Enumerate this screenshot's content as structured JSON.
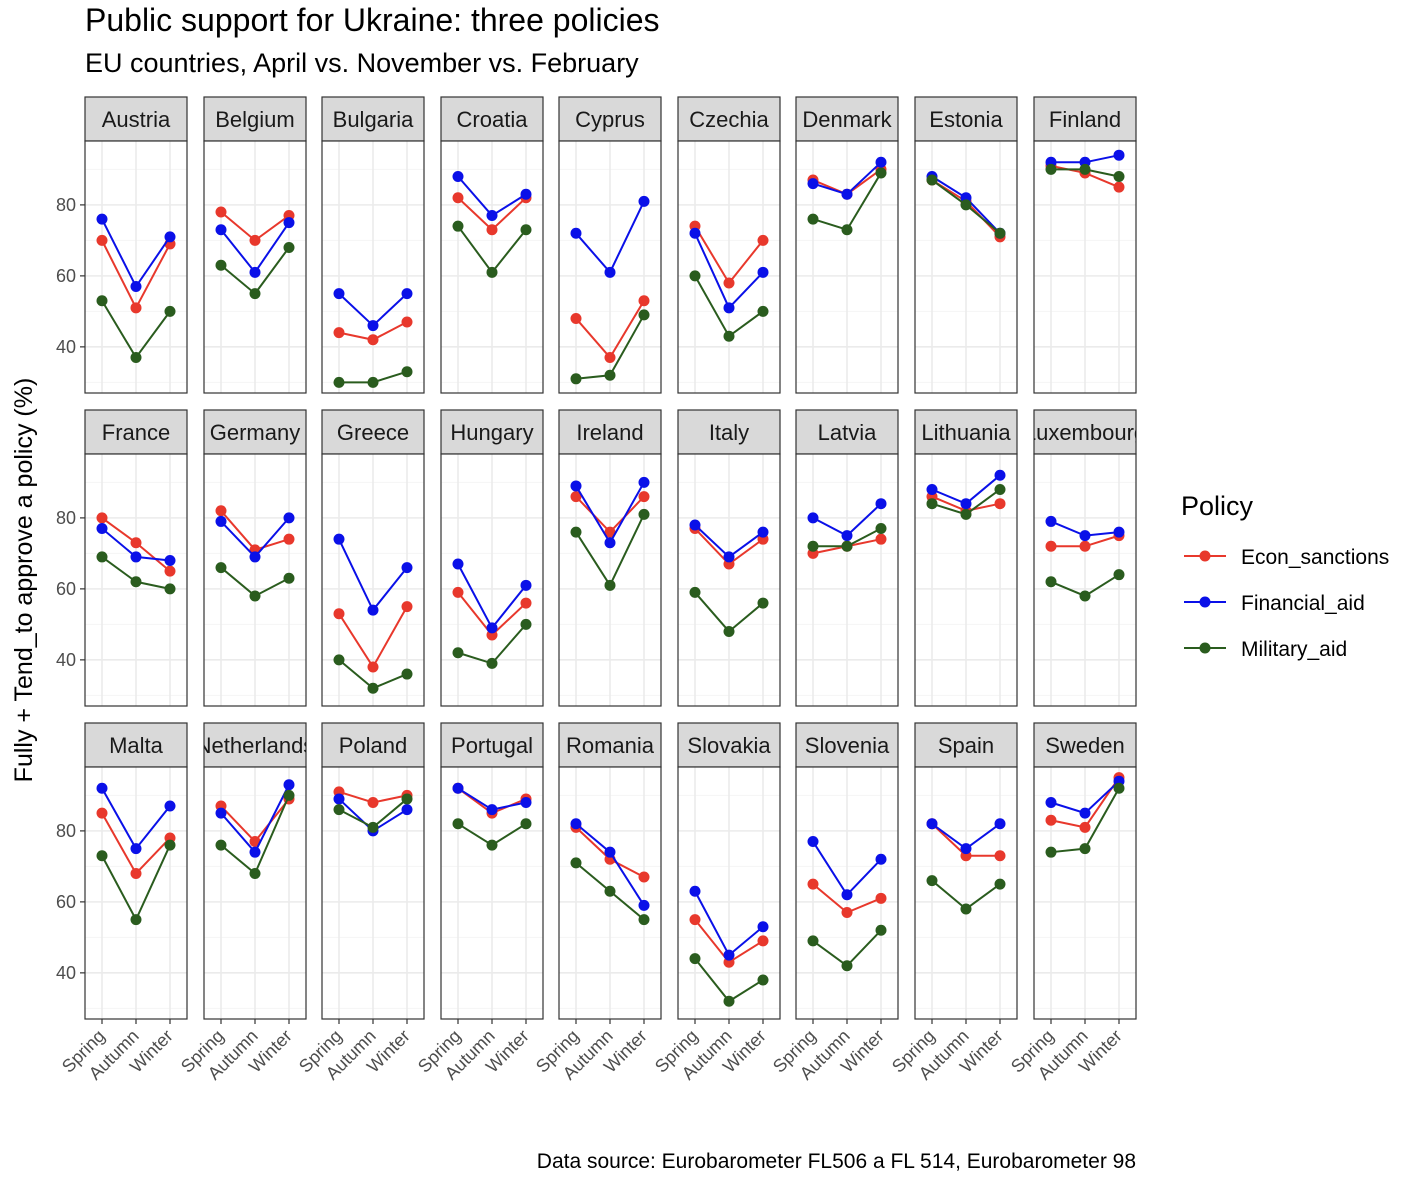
{
  "title": "Public support for Ukraine: three policies",
  "subtitle": "EU countries, April vs. November vs. February",
  "caption": "Data source: Eurobarometer FL506 a FL 514, Eurobarometer 98",
  "colors": {
    "Econ_sanctions": "#e8382c",
    "Financial_aid": "#0a10e8",
    "Military_aid": "#2a5c1e",
    "strip_bg": "#d9d9d9",
    "grid_major": "#ebebeb",
    "grid_minor": "#f5f5f5",
    "panel_border": "#333333"
  },
  "chart_data": {
    "type": "line",
    "facet": "country",
    "ylabel": "Fully + Tend_to approve a policy (%)",
    "xlabel": "",
    "x": [
      "Spring",
      "Autumn",
      "Winter"
    ],
    "ylim": [
      27,
      98
    ],
    "yticks": [
      40,
      60,
      80
    ],
    "grid": true,
    "legend": {
      "title": "Policy",
      "position": "right",
      "entries": [
        "Econ_sanctions",
        "Financial_aid",
        "Military_aid"
      ]
    },
    "panels": [
      {
        "country": "Austria",
        "Econ_sanctions": [
          70,
          51,
          69
        ],
        "Financial_aid": [
          76,
          57,
          71
        ],
        "Military_aid": [
          53,
          37,
          50
        ]
      },
      {
        "country": "Belgium",
        "Econ_sanctions": [
          78,
          70,
          77
        ],
        "Financial_aid": [
          73,
          61,
          75
        ],
        "Military_aid": [
          63,
          55,
          68
        ]
      },
      {
        "country": "Bulgaria",
        "Econ_sanctions": [
          44,
          42,
          47
        ],
        "Financial_aid": [
          55,
          46,
          55
        ],
        "Military_aid": [
          30,
          30,
          33
        ]
      },
      {
        "country": "Croatia",
        "Econ_sanctions": [
          82,
          73,
          82
        ],
        "Financial_aid": [
          88,
          77,
          83
        ],
        "Military_aid": [
          74,
          61,
          73
        ]
      },
      {
        "country": "Cyprus",
        "Econ_sanctions": [
          48,
          37,
          53
        ],
        "Financial_aid": [
          72,
          61,
          81
        ],
        "Military_aid": [
          31,
          32,
          49
        ]
      },
      {
        "country": "Czechia",
        "Econ_sanctions": [
          74,
          58,
          70
        ],
        "Financial_aid": [
          72,
          51,
          61
        ],
        "Military_aid": [
          60,
          43,
          50
        ]
      },
      {
        "country": "Denmark",
        "Econ_sanctions": [
          87,
          83,
          90
        ],
        "Financial_aid": [
          86,
          83,
          92
        ],
        "Military_aid": [
          76,
          73,
          89
        ]
      },
      {
        "country": "Estonia",
        "Econ_sanctions": [
          87,
          81,
          71
        ],
        "Financial_aid": [
          88,
          82,
          72
        ],
        "Military_aid": [
          87,
          80,
          72
        ]
      },
      {
        "country": "Finland",
        "Econ_sanctions": [
          91,
          89,
          85
        ],
        "Financial_aid": [
          92,
          92,
          94
        ],
        "Military_aid": [
          90,
          90,
          88
        ]
      },
      {
        "country": "France",
        "Econ_sanctions": [
          80,
          73,
          65
        ],
        "Financial_aid": [
          77,
          69,
          68
        ],
        "Military_aid": [
          69,
          62,
          60
        ]
      },
      {
        "country": "Germany",
        "Econ_sanctions": [
          82,
          71,
          74
        ],
        "Financial_aid": [
          79,
          69,
          80
        ],
        "Military_aid": [
          66,
          58,
          63
        ]
      },
      {
        "country": "Greece",
        "Econ_sanctions": [
          53,
          38,
          55
        ],
        "Financial_aid": [
          74,
          54,
          66
        ],
        "Military_aid": [
          40,
          32,
          36
        ]
      },
      {
        "country": "Hungary",
        "Econ_sanctions": [
          59,
          47,
          56
        ],
        "Financial_aid": [
          67,
          49,
          61
        ],
        "Military_aid": [
          42,
          39,
          50
        ]
      },
      {
        "country": "Ireland",
        "Econ_sanctions": [
          86,
          76,
          86
        ],
        "Financial_aid": [
          89,
          73,
          90
        ],
        "Military_aid": [
          76,
          61,
          81
        ]
      },
      {
        "country": "Italy",
        "Econ_sanctions": [
          77,
          67,
          74
        ],
        "Financial_aid": [
          78,
          69,
          76
        ],
        "Military_aid": [
          59,
          48,
          56
        ]
      },
      {
        "country": "Latvia",
        "Econ_sanctions": [
          70,
          72,
          74
        ],
        "Financial_aid": [
          80,
          75,
          84
        ],
        "Military_aid": [
          72,
          72,
          77
        ]
      },
      {
        "country": "Lithuania",
        "Econ_sanctions": [
          86,
          82,
          84
        ],
        "Financial_aid": [
          88,
          84,
          92
        ],
        "Military_aid": [
          84,
          81,
          88
        ]
      },
      {
        "country": "Luxembourg",
        "Econ_sanctions": [
          72,
          72,
          75
        ],
        "Financial_aid": [
          79,
          75,
          76
        ],
        "Military_aid": [
          62,
          58,
          64
        ]
      },
      {
        "country": "Malta",
        "Econ_sanctions": [
          85,
          68,
          78
        ],
        "Financial_aid": [
          92,
          75,
          87
        ],
        "Military_aid": [
          73,
          55,
          76
        ]
      },
      {
        "country": "Netherlands",
        "Econ_sanctions": [
          87,
          77,
          89
        ],
        "Financial_aid": [
          85,
          74,
          93
        ],
        "Military_aid": [
          76,
          68,
          90
        ]
      },
      {
        "country": "Poland",
        "Econ_sanctions": [
          91,
          88,
          90
        ],
        "Financial_aid": [
          89,
          80,
          86
        ],
        "Military_aid": [
          86,
          81,
          89
        ]
      },
      {
        "country": "Portugal",
        "Econ_sanctions": [
          92,
          85,
          89
        ],
        "Financial_aid": [
          92,
          86,
          88
        ],
        "Military_aid": [
          82,
          76,
          82
        ]
      },
      {
        "country": "Romania",
        "Econ_sanctions": [
          81,
          72,
          67
        ],
        "Financial_aid": [
          82,
          74,
          59
        ],
        "Military_aid": [
          71,
          63,
          55
        ]
      },
      {
        "country": "Slovakia",
        "Econ_sanctions": [
          55,
          43,
          49
        ],
        "Financial_aid": [
          63,
          45,
          53
        ],
        "Military_aid": [
          44,
          32,
          38
        ]
      },
      {
        "country": "Slovenia",
        "Econ_sanctions": [
          65,
          57,
          61
        ],
        "Financial_aid": [
          77,
          62,
          72
        ],
        "Military_aid": [
          49,
          42,
          52
        ]
      },
      {
        "country": "Spain",
        "Econ_sanctions": [
          82,
          73,
          73
        ],
        "Financial_aid": [
          82,
          75,
          82
        ],
        "Military_aid": [
          66,
          58,
          65
        ]
      },
      {
        "country": "Sweden",
        "Econ_sanctions": [
          83,
          81,
          95
        ],
        "Financial_aid": [
          88,
          85,
          94
        ],
        "Military_aid": [
          74,
          75,
          92
        ]
      }
    ]
  }
}
